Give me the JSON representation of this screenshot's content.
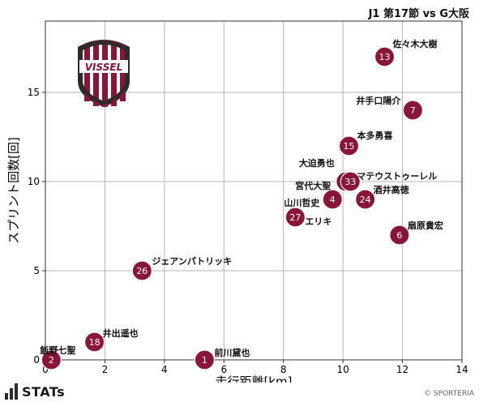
{
  "header": {
    "match_title": "J1 第17節 vs G大阪"
  },
  "logo": {
    "club_text": "VISSEL",
    "colors": {
      "primary": "#8a1538",
      "dark": "#2b2b2b"
    }
  },
  "footer": {
    "brand": "STATs",
    "copyright": "© SPORTERIA"
  },
  "chart_data": {
    "type": "scatter",
    "xlabel": "走行距離[km]",
    "ylabel": "スプリント回数[回]",
    "xlim": [
      0,
      14
    ],
    "ylim": [
      0,
      19
    ],
    "xticks": [
      0,
      2,
      4,
      6,
      8,
      10,
      12,
      14
    ],
    "yticks": [
      0,
      5,
      10,
      15
    ],
    "grid": true,
    "point_color": "#8b1538",
    "points": [
      {
        "number": "13",
        "name": "佐々木大樹",
        "x": 11.4,
        "y": 17
      },
      {
        "number": "7",
        "name": "井手口陽介",
        "x": 12.35,
        "y": 14
      },
      {
        "number": "15",
        "name": "本多勇喜",
        "x": 10.2,
        "y": 12
      },
      {
        "number": "10",
        "name": "大迫勇也",
        "x": 10.1,
        "y": 10
      },
      {
        "number": "33",
        "name": "マテウストゥーレル",
        "x": 10.25,
        "y": 10
      },
      {
        "number": "4",
        "name": "宮代大聖",
        "x": 9.65,
        "y": 9
      },
      {
        "number": "24",
        "name": "酒井高徳",
        "x": 10.75,
        "y": 9
      },
      {
        "number": "27",
        "name": "山川哲史",
        "x": 8.4,
        "y": 8
      },
      {
        "number": "",
        "name": "エリキ",
        "x": 8.4,
        "y": 8
      },
      {
        "number": "6",
        "name": "扇原貴宏",
        "x": 11.9,
        "y": 7
      },
      {
        "number": "26",
        "name": "ジェアンパトリッキ",
        "x": 3.25,
        "y": 5
      },
      {
        "number": "18",
        "name": "井出遥也",
        "x": 1.65,
        "y": 1
      },
      {
        "number": "2",
        "name": "飯野七聖",
        "x": 0.2,
        "y": 0
      },
      {
        "number": "1",
        "name": "前川黛也",
        "x": 5.35,
        "y": 0
      }
    ]
  }
}
